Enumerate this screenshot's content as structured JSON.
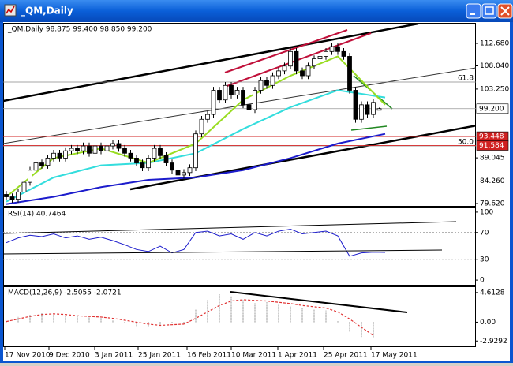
{
  "window": {
    "title": "_QM,Daily"
  },
  "chart_data": [
    {
      "type": "candlestick",
      "header": "_QM,Daily  98.875 99.400 98.850 99.200",
      "ylim": [
        78.97,
        116.75
      ],
      "yticks": [
        {
          "value": 112.68,
          "label": "112.680"
        },
        {
          "value": 108.04,
          "label": "108.040"
        },
        {
          "value": 103.25,
          "label": "103.250"
        },
        {
          "value": 89.045,
          "label": "89.045"
        },
        {
          "value": 84.26,
          "label": "84.260"
        },
        {
          "value": 79.62,
          "label": "79.620"
        }
      ],
      "price_marks": [
        {
          "value": 99.2,
          "label": "99.200",
          "color": "#ffffff",
          "text_color": "#000000"
        },
        {
          "value": 93.448,
          "label": "93.448",
          "color": "#d02020",
          "text_color": "#ffffff"
        },
        {
          "value": 91.584,
          "label": "91.584",
          "color": "#d02020",
          "text_color": "#ffffff"
        }
      ],
      "fib_levels": [
        {
          "value": 104.7,
          "label": "61.8"
        },
        {
          "value": 91.5,
          "label": "50.0"
        }
      ],
      "ohlc": [
        [
          81.5,
          82.2,
          80.3,
          81
        ],
        [
          81,
          81.7,
          79.8,
          80.5
        ],
        [
          80.5,
          82.7,
          79.8,
          82
        ],
        [
          82,
          84.7,
          81.3,
          84
        ],
        [
          84,
          87.2,
          83.3,
          86.5
        ],
        [
          86.5,
          88.7,
          85.8,
          88
        ],
        [
          88,
          88.7,
          86.8,
          87.5
        ],
        [
          87.5,
          89.7,
          86.8,
          89
        ],
        [
          89,
          90.7,
          88.3,
          90
        ],
        [
          90,
          90.7,
          88.3,
          89
        ],
        [
          89,
          91.2,
          88.3,
          90.5
        ],
        [
          90.5,
          91.7,
          89.8,
          91
        ],
        [
          91,
          91.7,
          89.8,
          90.5
        ],
        [
          90.5,
          92.2,
          89.8,
          91.5
        ],
        [
          91.5,
          92.2,
          89.3,
          90
        ],
        [
          90,
          92.2,
          89.3,
          91.5
        ],
        [
          91.5,
          92.2,
          89.8,
          90.5
        ],
        [
          90.5,
          92.2,
          89.8,
          91.5
        ],
        [
          91.5,
          92.7,
          90.8,
          92
        ],
        [
          92,
          92.7,
          90.3,
          91
        ],
        [
          91,
          91.7,
          89.3,
          90
        ],
        [
          90,
          90.7,
          88.3,
          89
        ],
        [
          89,
          89.7,
          87.3,
          88
        ],
        [
          88,
          88.7,
          86.3,
          87
        ],
        [
          87,
          89.7,
          86.3,
          89
        ],
        [
          89,
          91.7,
          88.3,
          91
        ],
        [
          91,
          91.7,
          88.8,
          89.5
        ],
        [
          89.5,
          90.2,
          87.3,
          88
        ],
        [
          88,
          88.7,
          85.8,
          86.5
        ],
        [
          86.5,
          87.2,
          84.8,
          85.5
        ],
        [
          85.5,
          86.7,
          84.8,
          86
        ],
        [
          86,
          87.7,
          85.3,
          87
        ],
        [
          87,
          94.7,
          86.3,
          94
        ],
        [
          94,
          97.7,
          93.3,
          97
        ],
        [
          97,
          98.7,
          96.3,
          98
        ],
        [
          98,
          103.7,
          97.3,
          103
        ],
        [
          103,
          103.7,
          100.3,
          101
        ],
        [
          101,
          104.7,
          100.3,
          104
        ],
        [
          104,
          104.7,
          101.3,
          102
        ],
        [
          102,
          103.7,
          101.3,
          103
        ],
        [
          103,
          103.7,
          99.3,
          100
        ],
        [
          100,
          100.7,
          98.3,
          99
        ],
        [
          99,
          103.7,
          98.3,
          103
        ],
        [
          103,
          105.7,
          102.3,
          105
        ],
        [
          105,
          105.7,
          103.3,
          104
        ],
        [
          104,
          106.7,
          103.3,
          106
        ],
        [
          106,
          107.7,
          105.3,
          107
        ],
        [
          107,
          108.7,
          106.3,
          108
        ],
        [
          108,
          111.7,
          107.3,
          111
        ],
        [
          111,
          111.7,
          106.3,
          107
        ],
        [
          107,
          107.7,
          105.3,
          106
        ],
        [
          106,
          108.7,
          105.3,
          108
        ],
        [
          108,
          110.2,
          107.3,
          109.5
        ],
        [
          109.5,
          110.7,
          108.8,
          110
        ],
        [
          110,
          111.7,
          109.3,
          111
        ],
        [
          111,
          112.7,
          110.3,
          112
        ],
        [
          112,
          112.7,
          110.3,
          111
        ],
        [
          111,
          111.7,
          109.3,
          110
        ],
        [
          110,
          110.7,
          102.3,
          103
        ],
        [
          103,
          103.7,
          96.3,
          97
        ],
        [
          97,
          100.7,
          96.3,
          100
        ],
        [
          100,
          100.7,
          97.3,
          98
        ],
        [
          98,
          101.2,
          97.3,
          100.5
        ],
        [
          98.875,
          99.4,
          98.85,
          99.2
        ]
      ],
      "series": [
        {
          "color": "#33dddd",
          "values": [
            80,
            85,
            87.5,
            88,
            90,
            95,
            99.5,
            103,
            101.5
          ]
        },
        {
          "color": "#1c1ccc",
          "values": [
            79.5,
            81,
            83,
            84.5,
            85,
            86.5,
            89,
            92,
            94
          ]
        },
        {
          "color": "#99dd22",
          "values": [
            81,
            89,
            91,
            88,
            92,
            101,
            106,
            110,
            100
          ]
        }
      ]
    },
    {
      "type": "line",
      "header": "RSI(14) 40.7464",
      "ylim": [
        -8,
        105.7
      ],
      "yticks": [
        100,
        70,
        30,
        0
      ],
      "levels": [
        70,
        30
      ],
      "series": [
        {
          "color": "#1c1ccc",
          "values": [
            55,
            62,
            66,
            64,
            68,
            62,
            65,
            60,
            63,
            58,
            52,
            45,
            42,
            50,
            40,
            45,
            70,
            72,
            65,
            68,
            60,
            70,
            65,
            72,
            75,
            68,
            70,
            72,
            65,
            35,
            40,
            41,
            40.7464
          ]
        }
      ]
    },
    {
      "type": "macd",
      "header": "MACD(12,26,9) -2.5055 -2.0721",
      "ylim": [
        -3.88,
        5.46
      ],
      "yticks": [
        4.6128,
        {
          "value": 0,
          "label": "0.00"
        },
        -2.9292
      ],
      "histogram": {
        "color": "#b0b0b0",
        "values": [
          0.2,
          0.8,
          1.2,
          1.4,
          1.3,
          1.0,
          0.9,
          0.8,
          0.6,
          0.3,
          -0.2,
          -0.6,
          -0.8,
          -0.5,
          -0.2,
          -0.3,
          2.0,
          3.5,
          4.4,
          4.0,
          3.5,
          3.0,
          3.2,
          2.8,
          2.5,
          2.2,
          2.0,
          1.8,
          0.2,
          -1.5,
          -2.3,
          -2.5055
        ]
      },
      "signal": {
        "color": "#e03030",
        "values": [
          0.1,
          0.5,
          0.9,
          1.2,
          1.3,
          1.2,
          1.0,
          0.9,
          0.8,
          0.6,
          0.3,
          0,
          -0.3,
          -0.5,
          -0.4,
          -0.3,
          0.6,
          1.6,
          2.6,
          3.3,
          3.5,
          3.4,
          3.3,
          3.1,
          2.9,
          2.6,
          2.4,
          2.2,
          1.6,
          0.5,
          -0.8,
          -2.0721
        ]
      }
    }
  ],
  "dates": [
    "17 Nov 2010",
    "9 Dec 2010",
    "3 Jan 2011",
    "25 Jan 2011",
    "16 Feb 2011",
    "10 Mar 2011",
    "1 Apr 2011",
    "25 Apr 2011",
    "17 May 2011"
  ]
}
